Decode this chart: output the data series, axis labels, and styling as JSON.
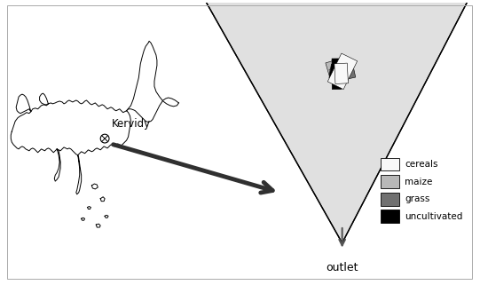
{
  "figure_width": 5.41,
  "figure_height": 3.21,
  "dpi": 100,
  "background_color": "#ffffff",
  "legend_items": [
    {
      "label": "cereals",
      "color": "#f8f8f8"
    },
    {
      "label": "maize",
      "color": "#b8b8b8"
    },
    {
      "label": "grass",
      "color": "#707070"
    },
    {
      "label": "uncultivated",
      "color": "#000000"
    }
  ],
  "kervidy_label": "Kervidy",
  "outlet_label": "outlet",
  "arrow_color": "#303030",
  "map_outline_color": "#000000",
  "land_colors": [
    "#f8f8f8",
    "#b8b8b8",
    "#707070",
    "#000000"
  ],
  "land_weights": [
    0.38,
    0.3,
    0.2,
    0.12
  ]
}
